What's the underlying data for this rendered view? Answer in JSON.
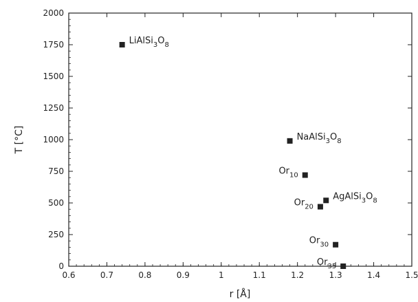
{
  "chart_data": {
    "type": "scatter",
    "title": "",
    "xlabel": "r [Å]",
    "ylabel": "T [°C]",
    "xlim": [
      0.6,
      1.5
    ],
    "ylim": [
      0,
      2000
    ],
    "xticks": [
      "0.6",
      "0.7",
      "0.8",
      "0.9",
      "1",
      "1.1",
      "1.2",
      "1.3",
      "1.4",
      "1.5"
    ],
    "yticks": [
      "0",
      "250",
      "500",
      "750",
      "1000",
      "1250",
      "1500",
      "1750",
      "2000"
    ],
    "grid": false,
    "points": [
      {
        "x": 0.74,
        "y": 1750,
        "label": "LiAlSi",
        "sub1": "3",
        "mid": "O",
        "sub2": "8",
        "label_side": "right"
      },
      {
        "x": 1.18,
        "y": 990,
        "label": "NaAlSi",
        "sub1": "3",
        "mid": "O",
        "sub2": "8",
        "label_side": "right"
      },
      {
        "x": 1.22,
        "y": 720,
        "label": "Or",
        "sub1": "10",
        "mid": "",
        "sub2": "",
        "label_side": "left"
      },
      {
        "x": 1.275,
        "y": 520,
        "label": "AgAlSi",
        "sub1": "3",
        "mid": "O",
        "sub2": "8",
        "label_side": "right"
      },
      {
        "x": 1.26,
        "y": 470,
        "label": "Or",
        "sub1": "20",
        "mid": "",
        "sub2": "",
        "label_side": "left"
      },
      {
        "x": 1.3,
        "y": 170,
        "label": "Or",
        "sub1": "30",
        "mid": "",
        "sub2": "",
        "label_side": "left"
      },
      {
        "x": 1.32,
        "y": 0,
        "label": "Or",
        "sub1": "35",
        "mid": "",
        "sub2": "",
        "label_side": "left"
      }
    ]
  }
}
